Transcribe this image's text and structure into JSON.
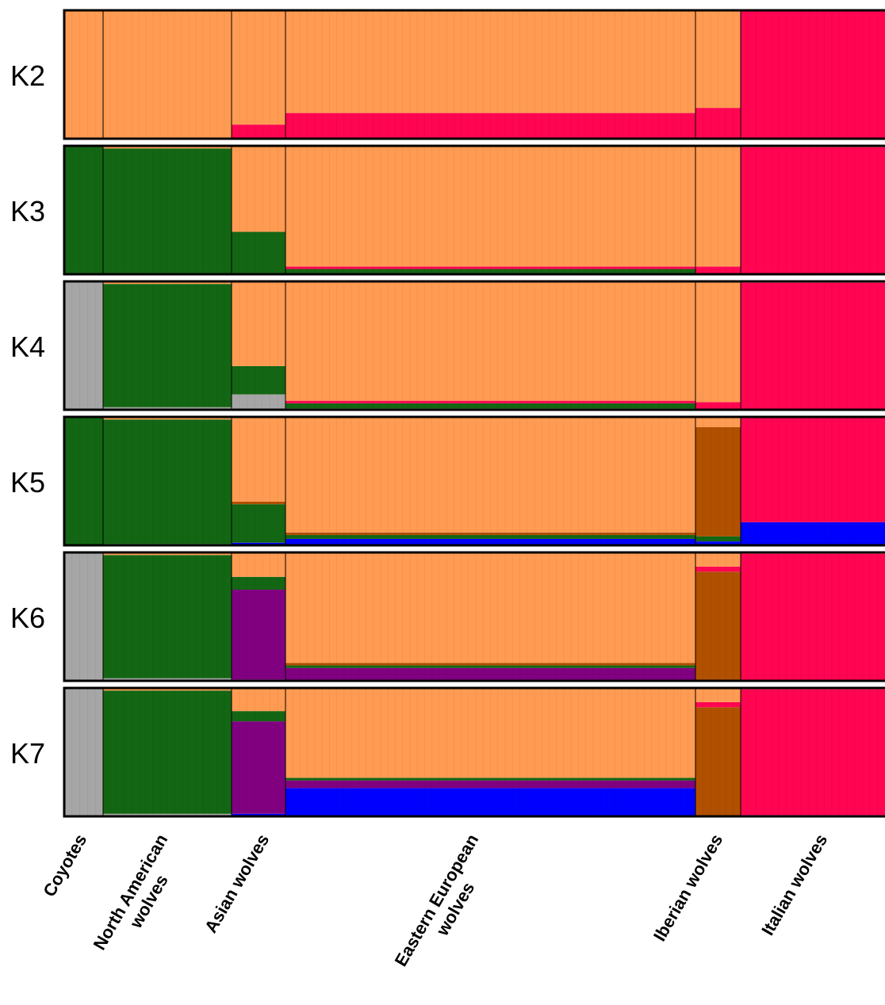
{
  "chart_data": {
    "type": "bar",
    "subtype": "stacked-proportion (admixture / STRUCTURE plot)",
    "ylim": [
      0,
      1
    ],
    "colors": {
      "orange": "#FF9B52",
      "red": "#FF0552",
      "green": "#136613",
      "grey": "#A6A6A6",
      "purple": "#800080",
      "blue": "#0000FF",
      "brown": "#B05000"
    },
    "population_labels": [
      "Coyotes",
      "North American wolves",
      "Asian wolves",
      "Eastern European wolves",
      "Iberian wolves",
      "Italian wolves"
    ],
    "groups": [
      {
        "label": "Coyotes",
        "label_lines": [
          "Coyotes"
        ],
        "n": 5
      },
      {
        "label": "North American wolves",
        "label_lines": [
          "North American",
          "wolves"
        ],
        "n": 18
      },
      {
        "label": "Asian wolves",
        "label_lines": [
          "Asian wolves"
        ],
        "n": 7
      },
      {
        "label": "Eastern European wolves",
        "label_lines": [
          "Eastern European",
          "wolves"
        ],
        "n": 56
      },
      {
        "label": "Iberian wolves",
        "label_lines": [
          "Iberian wolves"
        ],
        "n": 6
      },
      {
        "label": "Italian wolves",
        "label_lines": [
          "Italian wolves"
        ],
        "n": 19
      }
    ],
    "panels": [
      {
        "label": "K2",
        "overrides": {
          "1": [
            [
              "red",
              0.02
            ]
          ]
        },
        "segments": [
          {
            "group": 0,
            "comp": [
              [
                "orange",
                1.0
              ]
            ]
          },
          {
            "group": 1,
            "comp": [
              [
                "orange",
                1.0
              ]
            ]
          },
          {
            "group": 2,
            "comp": [
              [
                "red",
                0.11
              ],
              [
                "orange",
                0.89
              ]
            ]
          },
          {
            "group": 3,
            "comp": [
              [
                "red",
                0.2
              ],
              [
                "orange",
                0.8
              ]
            ]
          },
          {
            "group": 4,
            "comp": [
              [
                "red",
                0.24
              ],
              [
                "orange",
                0.76
              ]
            ]
          },
          {
            "group": 5,
            "comp": [
              [
                "red",
                1.0
              ]
            ]
          }
        ]
      },
      {
        "label": "K3",
        "segments": [
          {
            "group": 0,
            "comp": [
              [
                "green",
                1.0
              ]
            ]
          },
          {
            "group": 1,
            "comp": [
              [
                "green",
                0.98
              ],
              [
                "orange",
                0.02
              ]
            ]
          },
          {
            "group": 2,
            "comp": [
              [
                "green",
                0.33
              ],
              [
                "orange",
                0.67
              ]
            ]
          },
          {
            "group": 3,
            "comp": [
              [
                "green",
                0.04
              ],
              [
                "red",
                0.02
              ],
              [
                "orange",
                0.94
              ]
            ]
          },
          {
            "group": 4,
            "comp": [
              [
                "red",
                0.06
              ],
              [
                "orange",
                0.94
              ]
            ]
          },
          {
            "group": 5,
            "comp": [
              [
                "red",
                0.99
              ],
              [
                "orange",
                0.01
              ]
            ]
          }
        ]
      },
      {
        "label": "K4",
        "segments": [
          {
            "group": 0,
            "comp": [
              [
                "grey",
                1.0
              ]
            ]
          },
          {
            "group": 1,
            "comp": [
              [
                "grey",
                0.02
              ],
              [
                "green",
                0.96
              ],
              [
                "orange",
                0.02
              ]
            ]
          },
          {
            "group": 2,
            "comp": [
              [
                "grey",
                0.12
              ],
              [
                "green",
                0.22
              ],
              [
                "orange",
                0.66
              ]
            ]
          },
          {
            "group": 3,
            "comp": [
              [
                "grey",
                0.01
              ],
              [
                "green",
                0.04
              ],
              [
                "red",
                0.02
              ],
              [
                "orange",
                0.93
              ]
            ]
          },
          {
            "group": 4,
            "comp": [
              [
                "red",
                0.06
              ],
              [
                "orange",
                0.94
              ]
            ]
          },
          {
            "group": 5,
            "comp": [
              [
                "red",
                0.99
              ],
              [
                "orange",
                0.01
              ]
            ]
          }
        ]
      },
      {
        "label": "K5",
        "segments": [
          {
            "group": 0,
            "comp": [
              [
                "green",
                1.0
              ]
            ]
          },
          {
            "group": 1,
            "comp": [
              [
                "blue",
                0.01
              ],
              [
                "green",
                0.97
              ],
              [
                "orange",
                0.02
              ]
            ]
          },
          {
            "group": 2,
            "comp": [
              [
                "blue",
                0.02
              ],
              [
                "green",
                0.3
              ],
              [
                "brown",
                0.02
              ],
              [
                "orange",
                0.66
              ]
            ]
          },
          {
            "group": 3,
            "comp": [
              [
                "blue",
                0.05
              ],
              [
                "green",
                0.03
              ],
              [
                "brown",
                0.02
              ],
              [
                "orange",
                0.9
              ]
            ]
          },
          {
            "group": 4,
            "comp": [
              [
                "blue",
                0.03
              ],
              [
                "green",
                0.04
              ],
              [
                "brown",
                0.85
              ],
              [
                "orange",
                0.08
              ]
            ]
          },
          {
            "group": 5,
            "comp": [
              [
                "blue",
                0.18
              ],
              [
                "red",
                0.82
              ]
            ]
          }
        ]
      },
      {
        "label": "K6",
        "segments": [
          {
            "group": 0,
            "comp": [
              [
                "grey",
                1.0
              ]
            ]
          },
          {
            "group": 1,
            "comp": [
              [
                "grey",
                0.02
              ],
              [
                "green",
                0.96
              ],
              [
                "orange",
                0.02
              ]
            ]
          },
          {
            "group": 2,
            "comp": [
              [
                "grey",
                0.01
              ],
              [
                "purple",
                0.7
              ],
              [
                "green",
                0.1
              ],
              [
                "orange",
                0.19
              ]
            ]
          },
          {
            "group": 3,
            "comp": [
              [
                "purple",
                0.1
              ],
              [
                "green",
                0.02
              ],
              [
                "brown",
                0.02
              ],
              [
                "orange",
                0.86
              ]
            ]
          },
          {
            "group": 4,
            "comp": [
              [
                "brown",
                0.85
              ],
              [
                "red",
                0.04
              ],
              [
                "orange",
                0.11
              ]
            ]
          },
          {
            "group": 5,
            "comp": [
              [
                "red",
                0.99
              ],
              [
                "orange",
                0.01
              ]
            ]
          }
        ]
      },
      {
        "label": "K7",
        "segments": [
          {
            "group": 0,
            "comp": [
              [
                "grey",
                1.0
              ]
            ]
          },
          {
            "group": 1,
            "comp": [
              [
                "grey",
                0.02
              ],
              [
                "green",
                0.96
              ],
              [
                "orange",
                0.02
              ]
            ]
          },
          {
            "group": 2,
            "comp": [
              [
                "blue",
                0.02
              ],
              [
                "purple",
                0.72
              ],
              [
                "green",
                0.08
              ],
              [
                "orange",
                0.18
              ]
            ]
          },
          {
            "group": 3,
            "comp": [
              [
                "blue",
                0.22
              ],
              [
                "purple",
                0.06
              ],
              [
                "green",
                0.02
              ],
              [
                "orange",
                0.7
              ]
            ]
          },
          {
            "group": 4,
            "comp": [
              [
                "brown",
                0.85
              ],
              [
                "red",
                0.04
              ],
              [
                "orange",
                0.11
              ]
            ]
          },
          {
            "group": 5,
            "comp": [
              [
                "blue",
                0.01
              ],
              [
                "red",
                0.98
              ],
              [
                "orange",
                0.01
              ]
            ]
          }
        ]
      }
    ]
  }
}
